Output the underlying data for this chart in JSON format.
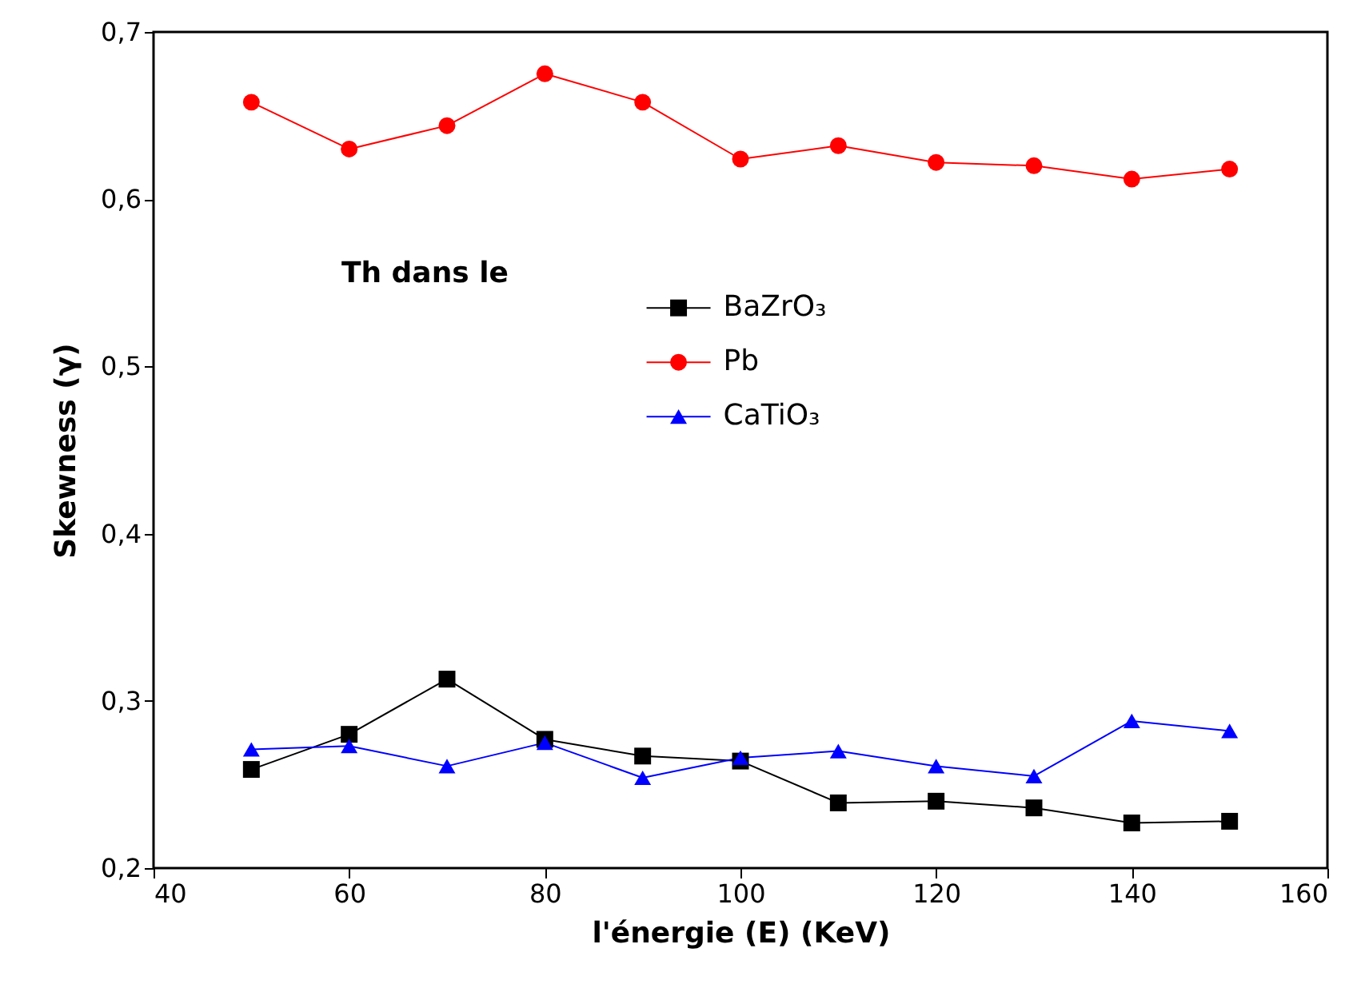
{
  "chart_data": {
    "type": "line",
    "xlabel": "l'énergie (E) (KeV)",
    "ylabel": "Skewness  (γ)",
    "x": [
      50,
      60,
      70,
      80,
      90,
      100,
      110,
      120,
      130,
      140,
      150
    ],
    "series": [
      {
        "name": "BaZrO₃",
        "color": "#000000",
        "marker": "square",
        "values": [
          0.259,
          0.28,
          0.313,
          0.277,
          0.267,
          0.264,
          0.239,
          0.24,
          0.236,
          0.227,
          0.228
        ]
      },
      {
        "name": "Pb",
        "color": "#ff0000",
        "marker": "circle",
        "values": [
          0.658,
          0.63,
          0.644,
          0.675,
          0.658,
          0.624,
          0.632,
          0.622,
          0.62,
          0.612,
          0.618
        ]
      },
      {
        "name": "CaTiO₃",
        "color": "#0000ff",
        "marker": "triangle",
        "values": [
          0.271,
          0.273,
          0.261,
          0.275,
          0.254,
          0.266,
          0.27,
          0.261,
          0.255,
          0.288,
          0.282
        ]
      }
    ],
    "xlim": [
      40,
      160
    ],
    "xticks": [
      40,
      60,
      80,
      100,
      120,
      140,
      160
    ],
    "ylim": [
      0.2,
      0.7
    ],
    "yticks": [
      {
        "value": 0.2,
        "label": "0,2"
      },
      {
        "value": 0.3,
        "label": "0,3"
      },
      {
        "value": 0.4,
        "label": "0,4"
      },
      {
        "value": 0.5,
        "label": "0,5"
      },
      {
        "value": 0.6,
        "label": "0,6"
      },
      {
        "value": 0.7,
        "label": "0,7"
      }
    ],
    "annotations": [
      "Th dans le"
    ],
    "legend": "center",
    "grid": false,
    "line_style": "solid"
  }
}
